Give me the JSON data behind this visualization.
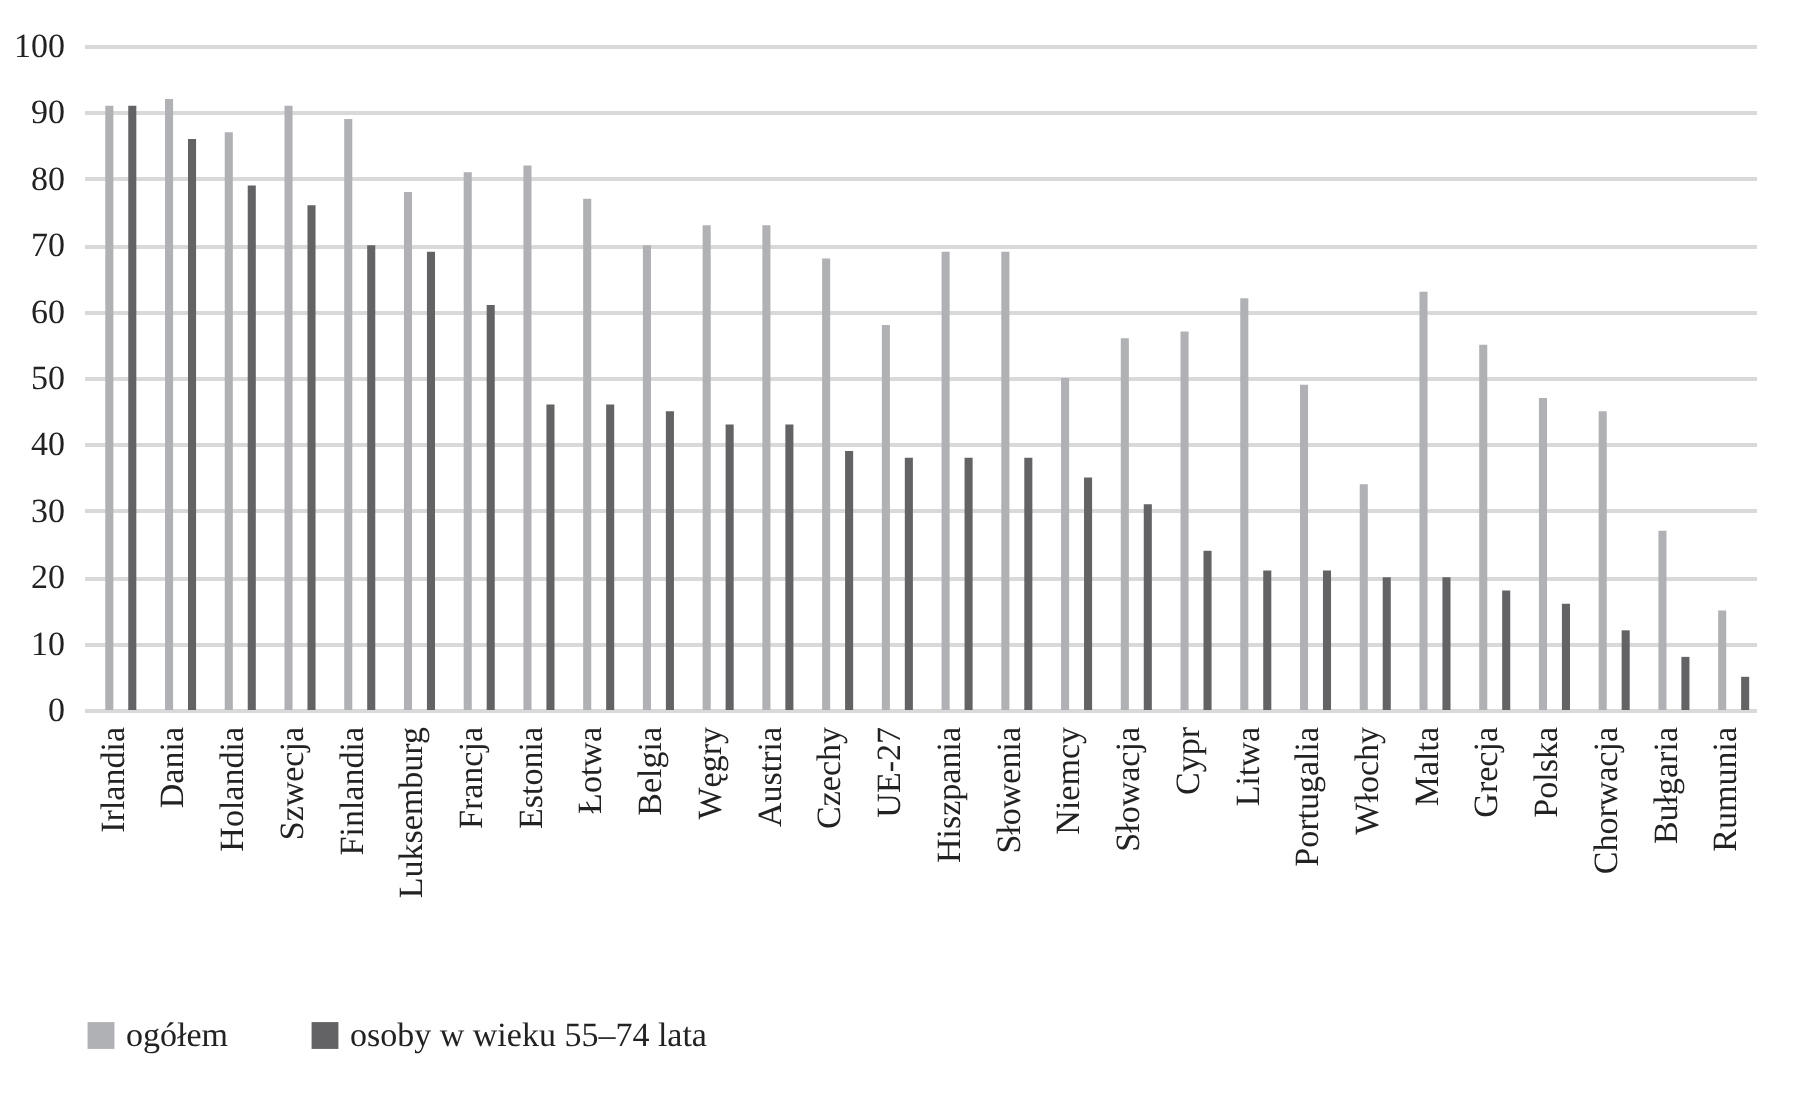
{
  "chart_data": {
    "type": "bar",
    "categories": [
      "Irlandia",
      "Dania",
      "Holandia",
      "Szwecja",
      "Finlandia",
      "Luksemburg",
      "Francja",
      "Estonia",
      "Łotwa",
      "Belgia",
      "Węgry",
      "Austria",
      "Czechy",
      "UE-27",
      "Hiszpania",
      "Słowenia",
      "Niemcy",
      "Słowacja",
      "Cypr",
      "Litwa",
      "Portugalia",
      "Włochy",
      "Malta",
      "Grecja",
      "Polska",
      "Chorwacja",
      "Bułgaria",
      "Rumunia"
    ],
    "series": [
      {
        "name": "ogółem",
        "color": "#b0b1b4",
        "values": [
          91,
          92,
          87,
          91,
          89,
          78,
          81,
          82,
          77,
          70,
          73,
          73,
          68,
          58,
          69,
          69,
          50,
          56,
          57,
          62,
          49,
          34,
          63,
          55,
          47,
          45,
          27,
          15
        ]
      },
      {
        "name": "osoby w wieku 55–74 lata",
        "color": "#636365",
        "values": [
          91,
          86,
          79,
          76,
          70,
          69,
          61,
          46,
          46,
          45,
          43,
          43,
          39,
          38,
          38,
          38,
          35,
          31,
          24,
          21,
          21,
          20,
          20,
          18,
          16,
          12,
          8,
          5
        ]
      }
    ],
    "ylim": [
      0,
      100
    ],
    "yticks": [
      0,
      10,
      20,
      30,
      40,
      50,
      60,
      70,
      80,
      90,
      100
    ],
    "grid": "y",
    "legend": "bottom"
  }
}
